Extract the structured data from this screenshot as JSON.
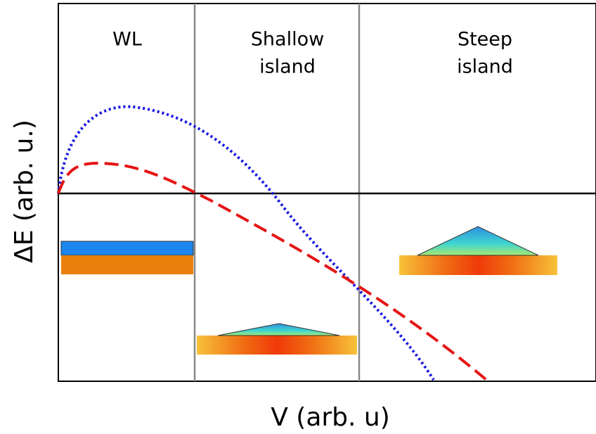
{
  "regions": [
    {
      "label_lines": [
        "WL"
      ]
    },
    {
      "label_lines": [
        "Shallow",
        "island"
      ]
    },
    {
      "label_lines": [
        "Steep",
        "island"
      ]
    }
  ],
  "axes": {
    "x_label": "V (arb. u)",
    "y_label": "ΔE (arb. u.)"
  }
}
